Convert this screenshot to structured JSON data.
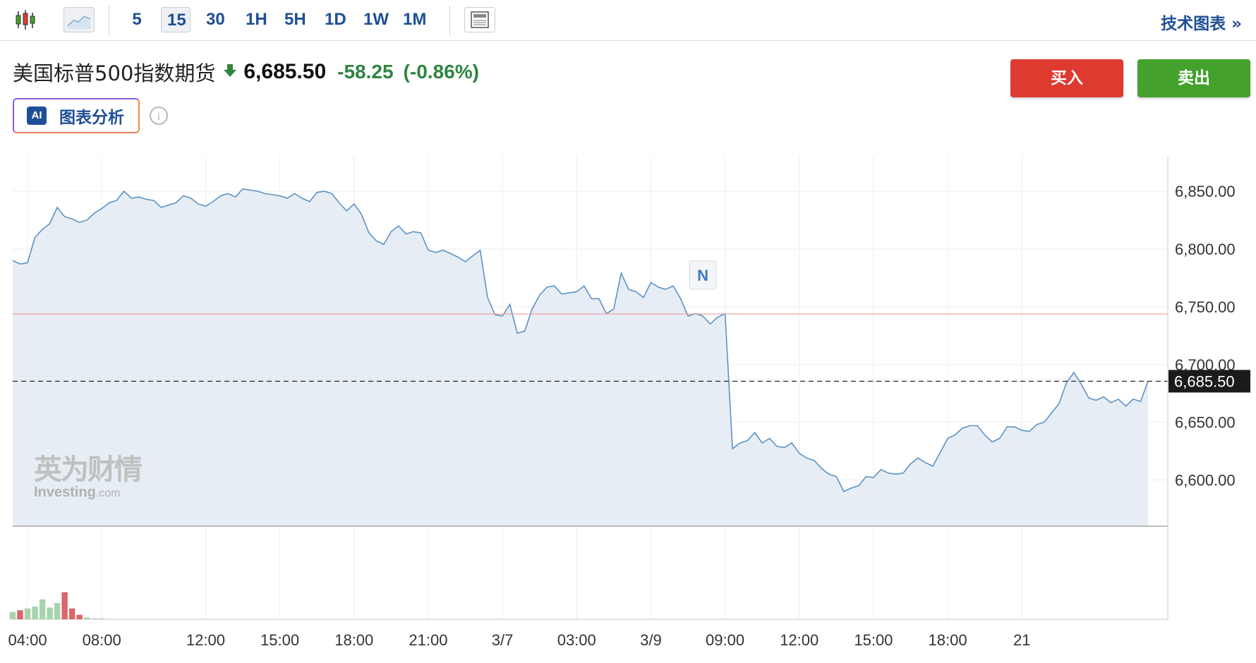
{
  "toolbar": {
    "chart_type_icon": "candlestick-icon",
    "line_icon": "line-chart-icon",
    "timeframes": [
      "5",
      "15",
      "30",
      "1H",
      "5H",
      "1D",
      "1W",
      "1M"
    ],
    "active_timeframe": "15",
    "layout_icon": "layout-icon",
    "tech_link": "技术图表 »"
  },
  "instrument": {
    "name": "美国标普500指数期货",
    "direction_icon": "down-arrow-icon",
    "last": "6,685.50",
    "change": "-58.25",
    "change_pct": "(-0.86%)"
  },
  "actions": {
    "buy": "买入",
    "sell": "卖出"
  },
  "ai": {
    "badge": "AI",
    "label": "图表分析",
    "info_icon": "info-icon"
  },
  "logo": {
    "cn": "英为财情",
    "en": "Investing",
    "en_suffix": ".com"
  },
  "colors": {
    "line": "#5b93c4",
    "area": "#e7edf5",
    "up": "#a6d3ae",
    "down": "#d9676b",
    "prev_close": "#f0a0a0",
    "accent": "#1f4f96"
  },
  "chart_data": {
    "type": "area",
    "price_axis": {
      "ticks": [
        6600,
        6650,
        6700,
        6750,
        6800,
        6850
      ],
      "labels": [
        "6,600.00",
        "6,650.00",
        "6,700.00",
        "6,750.00",
        "6,800.00",
        "6,850.00"
      ],
      "ylim": [
        6560,
        6880
      ]
    },
    "current_price": 6685.5,
    "current_label": "6,685.50",
    "prev_close": 6743.75,
    "x_labels": [
      "04:00",
      "08:00",
      "12:00",
      "15:00",
      "18:00",
      "21:00",
      "3/7",
      "03:00",
      "3/9",
      "09:00",
      "12:00",
      "15:00",
      "18:00",
      "21"
    ],
    "x_label_index": [
      2,
      12,
      26,
      36,
      46,
      56,
      66,
      76,
      86,
      96,
      106,
      116,
      126,
      136
    ],
    "news_marker": {
      "label": "N",
      "index": 93
    },
    "price": [
      6790,
      6787,
      6788,
      6810,
      6817,
      6822,
      6836,
      6828,
      6826,
      6823,
      6825,
      6831,
      6835,
      6840,
      6842,
      6850,
      6844,
      6845,
      6843,
      6842,
      6836,
      6838,
      6840,
      6846,
      6844,
      6839,
      6837,
      6841,
      6846,
      6848,
      6845,
      6852,
      6851,
      6850,
      6848,
      6847,
      6846,
      6844,
      6848,
      6844,
      6841,
      6849,
      6850,
      6848,
      6840,
      6833,
      6839,
      6830,
      6814,
      6807,
      6804,
      6815,
      6820,
      6813,
      6815,
      6814,
      6799,
      6797,
      6799,
      6796,
      6793,
      6789,
      6794,
      6799,
      6758,
      6743,
      6742,
      6752,
      6727,
      6729,
      6748,
      6760,
      6767,
      6768,
      6761,
      6762,
      6763,
      6768,
      6757,
      6757,
      6744,
      6748,
      6779,
      6765,
      6763,
      6758,
      6771,
      6767,
      6765,
      6768,
      6757,
      6742,
      6744,
      6742,
      6735,
      6741,
      6744,
      6627,
      6632,
      6634,
      6641,
      6632,
      6636,
      6629,
      6628,
      6632,
      6623,
      6619,
      6617,
      6610,
      6605,
      6603,
      6590,
      6593,
      6595,
      6603,
      6602,
      6609,
      6606,
      6605,
      6606,
      6614,
      6619,
      6615,
      6612,
      6624,
      6636,
      6639,
      6645,
      6647,
      6647,
      6639,
      6633,
      6636,
      6646,
      6646,
      6643,
      6642,
      6648,
      6650,
      6658,
      6666,
      6684,
      6693,
      6683,
      6671,
      6669,
      6672,
      6667,
      6670,
      6664,
      6670,
      6668,
      6685.5
    ],
    "volume": [
      8,
      10,
      12,
      14,
      22,
      13,
      18,
      30,
      12,
      5,
      2,
      1,
      1,
      0,
      0,
      0,
      0,
      0,
      0,
      0,
      0,
      0,
      0,
      0,
      0,
      0,
      0,
      0,
      0,
      0,
      0,
      0,
      0,
      0,
      0,
      0,
      0,
      0,
      0,
      0,
      0,
      0,
      0,
      0,
      0,
      0,
      0,
      0,
      0,
      0,
      0,
      0,
      0,
      0,
      0,
      0,
      0,
      0,
      0,
      0,
      0,
      0,
      0,
      0,
      0,
      0,
      0,
      0,
      0,
      0,
      0,
      0,
      0,
      0,
      0,
      0,
      0,
      0,
      0,
      0,
      0,
      0,
      0,
      0,
      0,
      0,
      0,
      0,
      0,
      0,
      0,
      0,
      0,
      0,
      0,
      0,
      0,
      0,
      0,
      0,
      0,
      0,
      0,
      0,
      0,
      0,
      0,
      0,
      0,
      0,
      0,
      0,
      0,
      0,
      0,
      0,
      0,
      0,
      0,
      0,
      0,
      0,
      0,
      0,
      0,
      0,
      0,
      0,
      0,
      0,
      0,
      0,
      0,
      0,
      0,
      0,
      0,
      0,
      0,
      0,
      0,
      0,
      0,
      0,
      0,
      0,
      0,
      0,
      0,
      0,
      0,
      0,
      0,
      0,
      0,
      0,
      0,
      0,
      0,
      0,
      0
    ],
    "volume_scale": 100
  }
}
